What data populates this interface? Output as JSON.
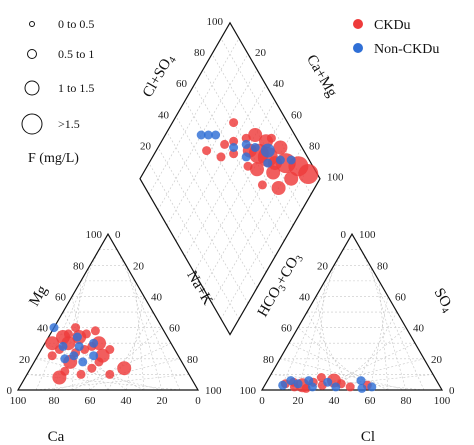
{
  "chart_data": {
    "type": "scatter",
    "subtype": "piper-diagram",
    "size_legend": {
      "title": "F (mg/L)",
      "classes": [
        "0 to 0.5",
        "0.5 to 1",
        "1 to 1.5",
        ">1.5"
      ]
    },
    "groups": [
      {
        "name": "CKDu",
        "color": "#ee3b3b"
      },
      {
        "name": "Non-CKDu",
        "color": "#2f6fd6"
      }
    ],
    "cation_triangle": {
      "ticks": [
        "0",
        "20",
        "40",
        "60",
        "80",
        "100"
      ],
      "points": [
        {
          "g": 0,
          "s": 1,
          "ca": 70,
          "mg": 22
        },
        {
          "g": 0,
          "s": 1,
          "ca": 64,
          "mg": 26
        },
        {
          "g": 0,
          "s": 2,
          "ca": 58,
          "mg": 34
        },
        {
          "g": 0,
          "s": 1,
          "ca": 54,
          "mg": 36
        },
        {
          "g": 0,
          "s": 2,
          "ca": 49,
          "mg": 34
        },
        {
          "g": 0,
          "s": 1,
          "ca": 44,
          "mg": 36
        },
        {
          "g": 0,
          "s": 2,
          "ca": 40,
          "mg": 30
        },
        {
          "g": 0,
          "s": 1,
          "ca": 56,
          "mg": 24
        },
        {
          "g": 0,
          "s": 2,
          "ca": 62,
          "mg": 18
        },
        {
          "g": 0,
          "s": 1,
          "ca": 68,
          "mg": 12
        },
        {
          "g": 0,
          "s": 2,
          "ca": 73,
          "mg": 8
        },
        {
          "g": 0,
          "s": 1,
          "ca": 50,
          "mg": 26
        },
        {
          "g": 0,
          "s": 1,
          "ca": 46,
          "mg": 18
        },
        {
          "g": 0,
          "s": 2,
          "ca": 42,
          "mg": 22
        },
        {
          "g": 0,
          "s": 1,
          "ca": 36,
          "mg": 26
        },
        {
          "g": 0,
          "s": 2,
          "ca": 34,
          "mg": 14
        },
        {
          "g": 0,
          "s": 1,
          "ca": 52,
          "mg": 14
        },
        {
          "g": 0,
          "s": 1,
          "ca": 60,
          "mg": 10
        },
        {
          "g": 0,
          "s": 2,
          "ca": 66,
          "mg": 30
        },
        {
          "g": 0,
          "s": 1,
          "ca": 48,
          "mg": 40
        },
        {
          "g": 0,
          "s": 1,
          "ca": 38,
          "mg": 38
        },
        {
          "g": 0,
          "s": 2,
          "ca": 57,
          "mg": 30
        },
        {
          "g": 0,
          "s": 1,
          "ca": 45,
          "mg": 28
        },
        {
          "g": 0,
          "s": 1,
          "ca": 44,
          "mg": 10
        },
        {
          "g": 1,
          "s": 1,
          "ca": 60,
          "mg": 40
        },
        {
          "g": 1,
          "s": 1,
          "ca": 64,
          "mg": 20
        },
        {
          "g": 1,
          "s": 1,
          "ca": 58,
          "mg": 22
        },
        {
          "g": 1,
          "s": 1,
          "ca": 52,
          "mg": 28
        },
        {
          "g": 1,
          "s": 1,
          "ca": 47,
          "mg": 22
        },
        {
          "g": 1,
          "s": 1,
          "ca": 55,
          "mg": 18
        },
        {
          "g": 1,
          "s": 1,
          "ca": 61,
          "mg": 28
        },
        {
          "g": 1,
          "s": 1,
          "ca": 43,
          "mg": 30
        },
        {
          "g": 1,
          "s": 1,
          "ca": 50,
          "mg": 34
        }
      ]
    },
    "anion_triangle": {
      "ticks": [
        "0",
        "20",
        "40",
        "60",
        "80",
        "100"
      ],
      "points": [
        {
          "g": 0,
          "s": 1,
          "cl": 11,
          "so4": 4
        },
        {
          "g": 0,
          "s": 1,
          "cl": 15,
          "so4": 5
        },
        {
          "g": 0,
          "s": 2,
          "cl": 21,
          "so4": 3
        },
        {
          "g": 0,
          "s": 1,
          "cl": 26,
          "so4": 5
        },
        {
          "g": 0,
          "s": 1,
          "cl": 32,
          "so4": 3
        },
        {
          "g": 0,
          "s": 2,
          "cl": 37,
          "so4": 6
        },
        {
          "g": 0,
          "s": 1,
          "cl": 42,
          "so4": 4
        },
        {
          "g": 0,
          "s": 1,
          "cl": 48,
          "so4": 2
        },
        {
          "g": 0,
          "s": 1,
          "cl": 17,
          "so4": 2
        },
        {
          "g": 0,
          "s": 1,
          "cl": 29,
          "so4": 8
        },
        {
          "g": 0,
          "s": 1,
          "cl": 57,
          "so4": 3
        },
        {
          "g": 0,
          "s": 1,
          "cl": 24,
          "so4": 1
        },
        {
          "g": 1,
          "s": 1,
          "cl": 10,
          "so4": 3
        },
        {
          "g": 1,
          "s": 1,
          "cl": 13,
          "so4": 6
        },
        {
          "g": 1,
          "s": 1,
          "cl": 18,
          "so4": 4
        },
        {
          "g": 1,
          "s": 1,
          "cl": 23,
          "so4": 6
        },
        {
          "g": 1,
          "s": 1,
          "cl": 27,
          "so4": 2
        },
        {
          "g": 1,
          "s": 1,
          "cl": 34,
          "so4": 5
        },
        {
          "g": 1,
          "s": 1,
          "cl": 40,
          "so4": 2
        },
        {
          "g": 1,
          "s": 1,
          "cl": 52,
          "so4": 6
        },
        {
          "g": 1,
          "s": 1,
          "cl": 55,
          "so4": 1
        },
        {
          "g": 1,
          "s": 1,
          "cl": 60,
          "so4": 2
        }
      ]
    },
    "diamond": {
      "ticks": [
        "0",
        "20",
        "40",
        "60",
        "80",
        "100"
      ],
      "points": [
        {
          "g": 0,
          "s": 2,
          "u": 70,
          "v": 48
        },
        {
          "g": 0,
          "s": 3,
          "u": 74,
          "v": 42
        },
        {
          "g": 0,
          "s": 2,
          "u": 68,
          "v": 38
        },
        {
          "g": 0,
          "s": 3,
          "u": 78,
          "v": 36
        },
        {
          "g": 0,
          "s": 2,
          "u": 80,
          "v": 30
        },
        {
          "g": 0,
          "s": 3,
          "u": 86,
          "v": 24
        },
        {
          "g": 0,
          "s": 2,
          "u": 84,
          "v": 16
        },
        {
          "g": 0,
          "s": 3,
          "u": 92,
          "v": 16
        },
        {
          "g": 0,
          "s": 3,
          "u": 95,
          "v": 8
        },
        {
          "g": 0,
          "s": 2,
          "u": 82,
          "v": 42
        },
        {
          "g": 0,
          "s": 1,
          "u": 64,
          "v": 44
        },
        {
          "g": 0,
          "s": 1,
          "u": 72,
          "v": 54
        },
        {
          "g": 0,
          "s": 2,
          "u": 76,
          "v": 28
        },
        {
          "g": 0,
          "s": 1,
          "u": 66,
          "v": 30
        },
        {
          "g": 0,
          "s": 2,
          "u": 88,
          "v": 32
        },
        {
          "g": 0,
          "s": 1,
          "u": 60,
          "v": 56
        },
        {
          "g": 0,
          "s": 1,
          "u": 58,
          "v": 64
        },
        {
          "g": 0,
          "s": 2,
          "u": 74,
          "v": 20
        },
        {
          "g": 0,
          "s": 1,
          "u": 64,
          "v": 60
        },
        {
          "g": 0,
          "s": 1,
          "u": 70,
          "v": 66
        },
        {
          "g": 0,
          "s": 2,
          "u": 78,
          "v": 50
        },
        {
          "g": 0,
          "s": 1,
          "u": 86,
          "v": 40
        },
        {
          "g": 0,
          "s": 1,
          "u": 52,
          "v": 62
        },
        {
          "g": 0,
          "s": 1,
          "u": 46,
          "v": 72
        },
        {
          "g": 1,
          "s": 1,
          "u": 74,
          "v": 46
        },
        {
          "g": 1,
          "s": 2,
          "u": 80,
          "v": 38
        },
        {
          "g": 1,
          "s": 1,
          "u": 84,
          "v": 28
        },
        {
          "g": 1,
          "s": 1,
          "u": 70,
          "v": 52
        },
        {
          "g": 1,
          "s": 1,
          "u": 90,
          "v": 22
        },
        {
          "g": 1,
          "s": 1,
          "u": 76,
          "v": 34
        },
        {
          "g": 1,
          "s": 1,
          "u": 66,
          "v": 48
        },
        {
          "g": 1,
          "s": 1,
          "u": 56,
          "v": 72
        },
        {
          "g": 1,
          "s": 1,
          "u": 48,
          "v": 80
        },
        {
          "g": 1,
          "s": 1,
          "u": 52,
          "v": 76
        },
        {
          "g": 1,
          "s": 1,
          "u": 62,
          "v": 58
        }
      ]
    },
    "axis_labels": {
      "ca": "Ca",
      "mg": "Mg",
      "cl": "Cl",
      "so4_base": "SO",
      "so4_sub": "4",
      "diamond_left_base": "Cl+SO",
      "diamond_left_sub": "4",
      "diamond_right": "Ca+Mg",
      "diamond_bottom": "Na+K",
      "diamond_hco3_a": "HCO",
      "diamond_hco3_sub1": "3",
      "diamond_hco3_b": "+CO",
      "diamond_hco3_sub2": "3"
    }
  }
}
